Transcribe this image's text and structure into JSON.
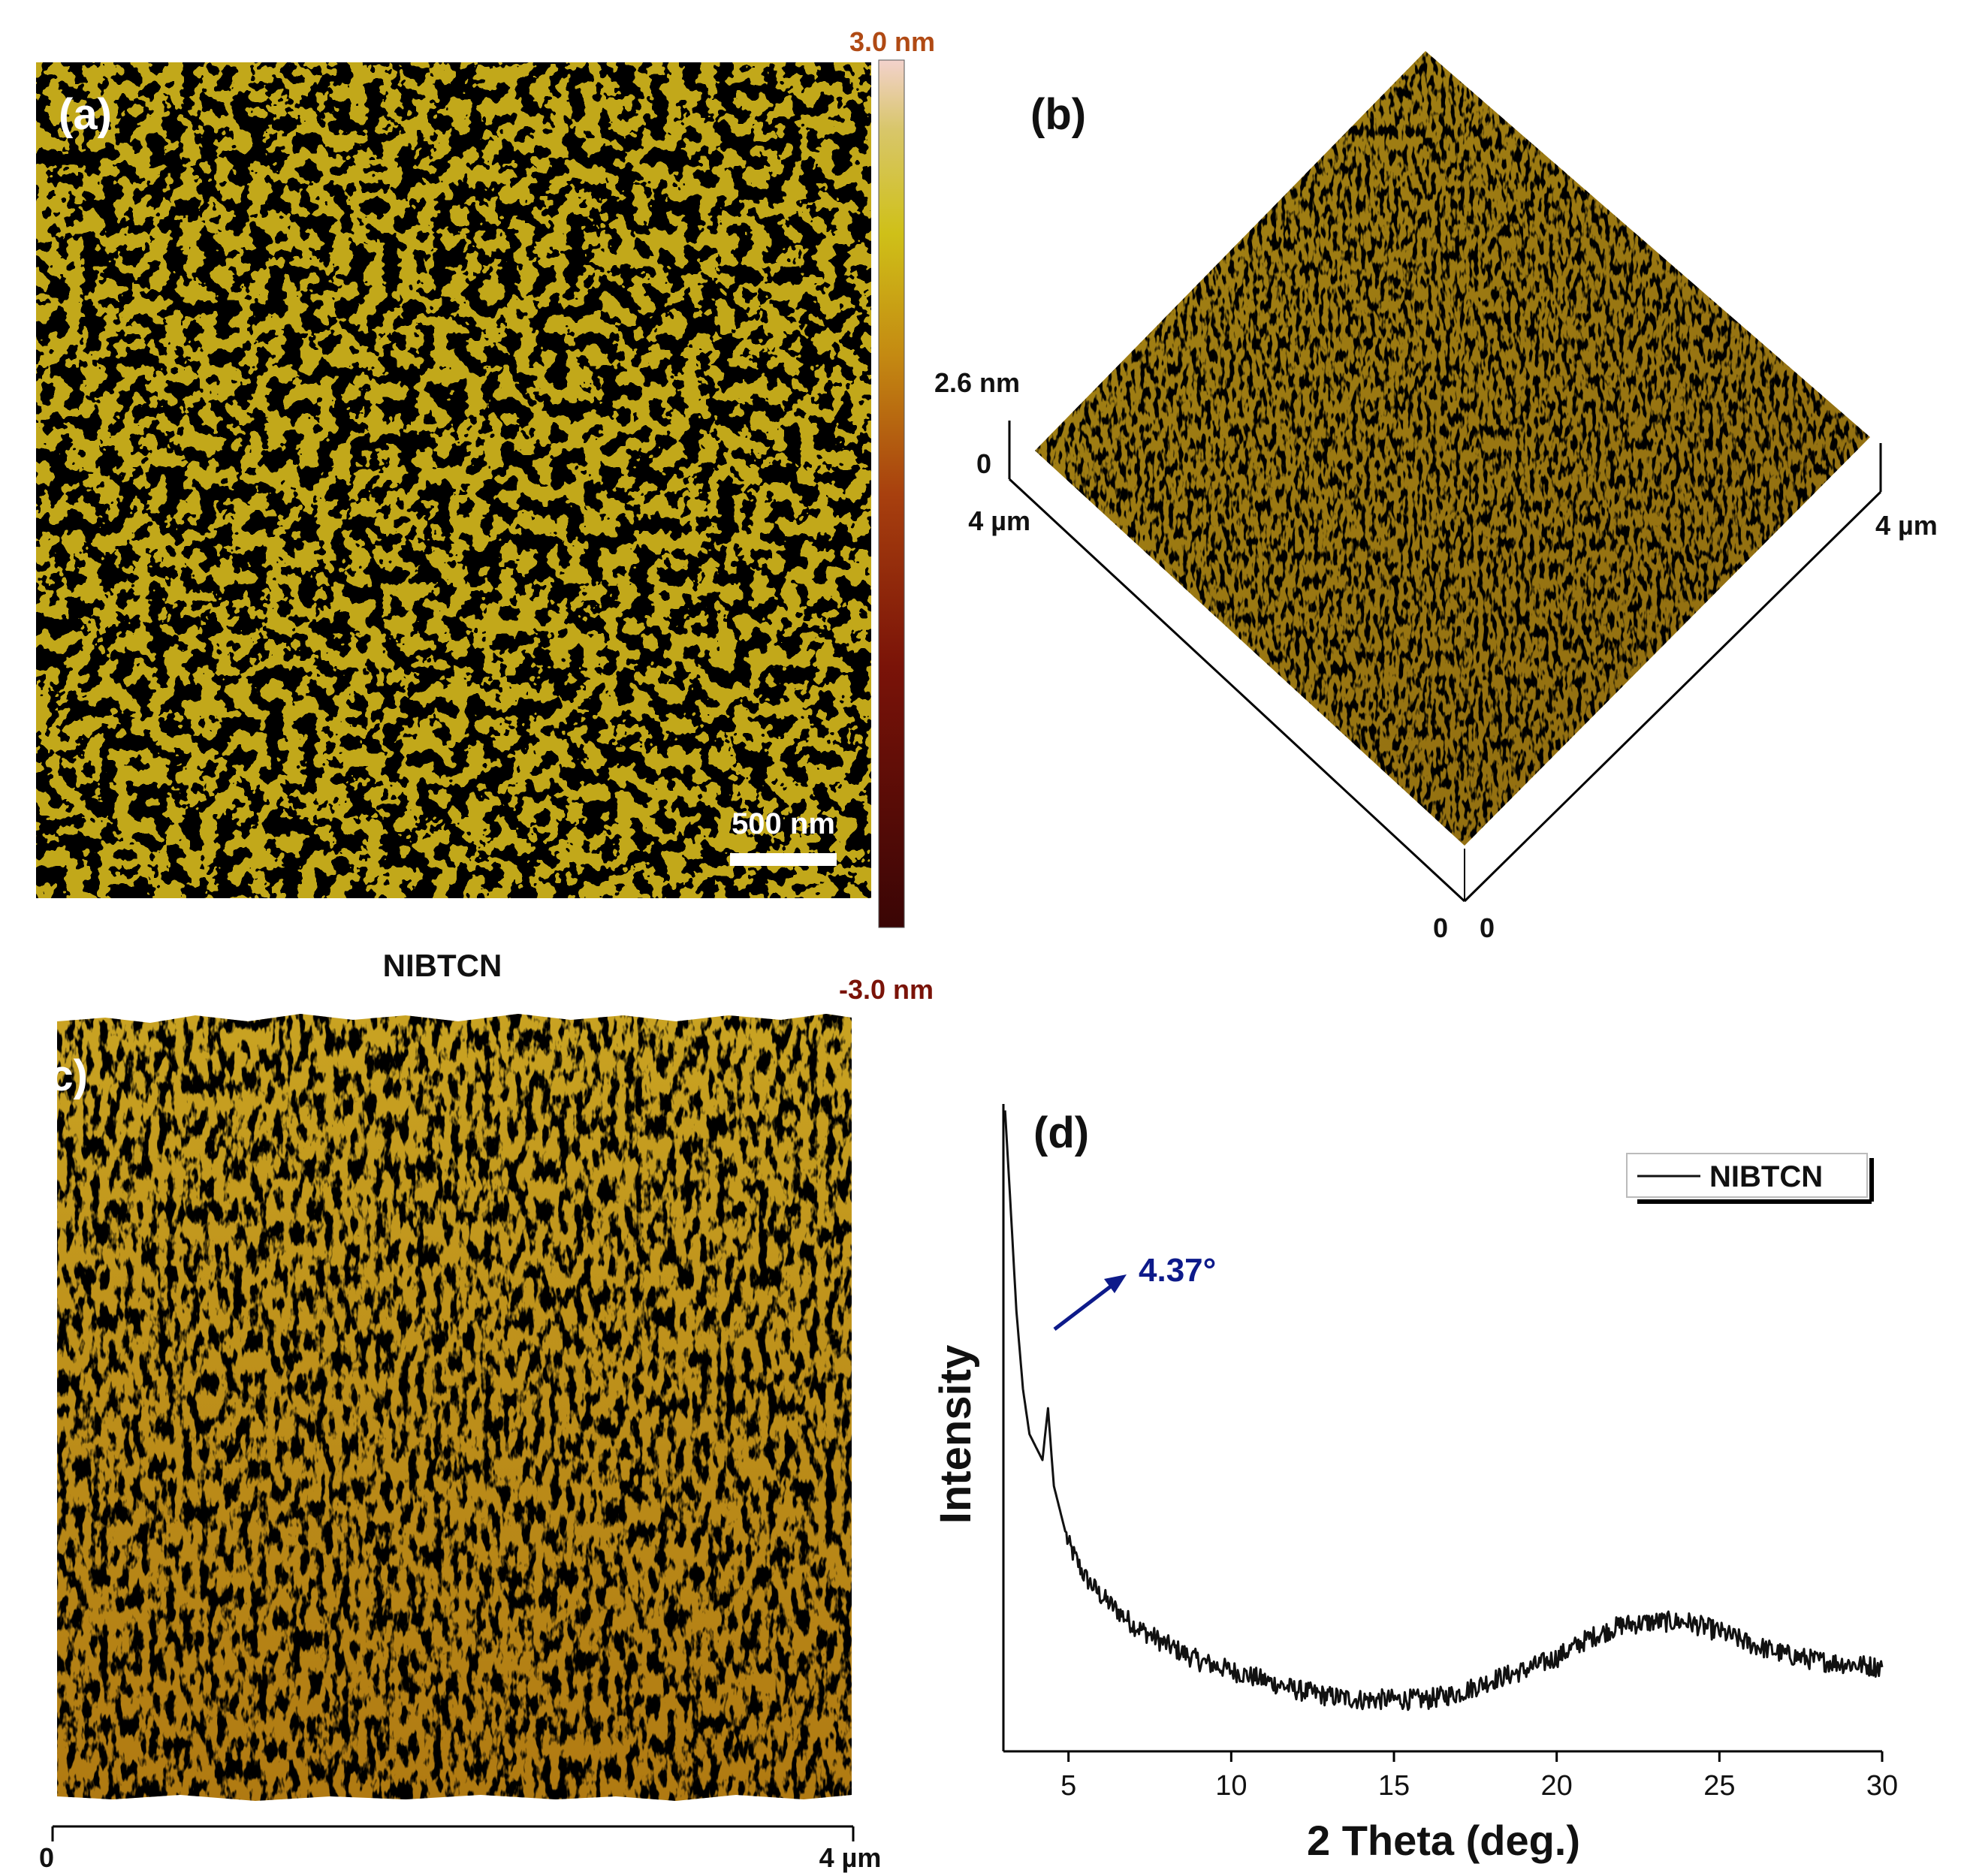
{
  "figure": {
    "panel_a": {
      "label": "(a)",
      "scale_bar_label": "500 nm",
      "colorbar": {
        "max_label": "3.0 nm",
        "min_label": "-3.0 nm",
        "colors": [
          "#3a0505",
          "#7a1308",
          "#a8400e",
          "#c48a12",
          "#cfc018",
          "#d8c66a",
          "#f3d2cc"
        ]
      },
      "caption": "NIBTCN"
    },
    "panel_b": {
      "label": "(b)",
      "z_label": "2.6 nm",
      "z_zero": "0",
      "left_axis_label": "4 µm",
      "right_axis_label": "4 µm",
      "origin_left": "0",
      "origin_right": "0"
    },
    "panel_c": {
      "label": "(c)",
      "axis_start": "0",
      "axis_end": "4 µm"
    },
    "panel_d": {
      "label": "(d)",
      "peak_annotation": "4.37°",
      "annotation_color": "#0d1a8a"
    },
    "surface_colors": {
      "dark": "#8a2a0a",
      "mid": "#b5780f",
      "light": "#cfb920",
      "highlight": "#e8d7a0"
    }
  },
  "chart_data": {
    "type": "line",
    "title": "",
    "xlabel": "2 Theta (deg.)",
    "ylabel": "Intensity",
    "xlim": [
      3,
      30
    ],
    "ylim": [
      0,
      100
    ],
    "xticks": [
      5,
      10,
      15,
      20,
      25,
      30
    ],
    "xtick_labels": [
      "5",
      "10",
      "15",
      "20",
      "25",
      "30"
    ],
    "legend": "top-right",
    "series": [
      {
        "name": "NIBTCN",
        "x": [
          3.05,
          3.2,
          3.4,
          3.6,
          3.8,
          4.0,
          4.2,
          4.37,
          4.55,
          4.8,
          5.0,
          5.5,
          6.0,
          7.0,
          8.0,
          9.0,
          10.0,
          11.0,
          12.0,
          13.0,
          14.0,
          15.0,
          16.0,
          17.0,
          18.0,
          19.0,
          20.0,
          21.0,
          22.0,
          23.0,
          24.0,
          25.0,
          26.0,
          27.0,
          28.0,
          29.0,
          30.0
        ],
        "y": [
          99,
          86,
          68,
          56,
          49,
          47,
          45,
          53,
          41,
          36,
          32,
          27,
          24,
          19.5,
          16.5,
          14,
          12.5,
          11,
          9.5,
          8.5,
          8,
          8,
          8,
          9,
          11,
          12.5,
          14.5,
          17.5,
          19.5,
          20,
          20,
          18.5,
          16.5,
          15,
          14,
          13.5,
          13
        ]
      }
    ]
  }
}
